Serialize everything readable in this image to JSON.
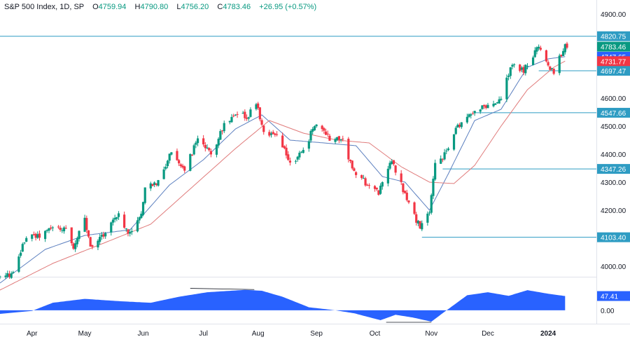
{
  "header": {
    "symbol": "S&P 500 Index, 1D, SP",
    "open_label": "O",
    "open": "4759.94",
    "high_label": "H",
    "high": "4790.80",
    "low_label": "L",
    "low": "4756.20",
    "close_label": "C",
    "close": "4783.46",
    "change": "+26.95 (+0.57%)"
  },
  "colors": {
    "up": "#089981",
    "down": "#f23645",
    "level_line": "#2e9cc3",
    "ma_fast": "#5b7fbf",
    "ma_slow": "#e07b7b",
    "oscillator": "#2962ff",
    "axis_text": "#131722",
    "background": "#ffffff"
  },
  "chart_data": [
    {
      "type": "candlestick",
      "title": "S&P 500 Index, 1D, SP",
      "ylim": [
        3970,
        4935
      ],
      "y_ticks": [
        "4900.00",
        "4600.00",
        "4500.00",
        "4400.00",
        "4300.00",
        "4200.00",
        "4000.00"
      ],
      "y_tick_values": [
        4900,
        4600,
        4500,
        4400,
        4300,
        4200,
        4000
      ],
      "x_ticks": [
        "Apr",
        "May",
        "Jun",
        "Jul",
        "Aug",
        "Sep",
        "Oct",
        "Nov",
        "Dec",
        "2024"
      ],
      "x_tick_dates": [
        "2023-04-03",
        "2023-05-01",
        "2023-06-01",
        "2023-07-03",
        "2023-08-01",
        "2023-09-01",
        "2023-10-02",
        "2023-11-01",
        "2023-12-01",
        "2024-01-02"
      ],
      "x_range": [
        "2023-03-17",
        "2024-01-12"
      ],
      "levels": [
        {
          "value": 4820.75,
          "label": "4820.75",
          "from": "2023-03-17"
        },
        {
          "value": 4697.47,
          "label": "4697.47",
          "from": "2023-12-28"
        },
        {
          "value": 4547.66,
          "label": "4547.66",
          "from": "2023-11-24"
        },
        {
          "value": 4347.26,
          "label": "4347.26",
          "from": "2023-11-07"
        },
        {
          "value": 4103.4,
          "label": "4103.40",
          "from": "2023-10-27"
        }
      ],
      "price_labels": [
        {
          "value": 4783.46,
          "label": "4783.46",
          "color": "#089981"
        },
        {
          "value": 4747.65,
          "label": "4747.65",
          "color": "#2962ff"
        },
        {
          "value": 4731.77,
          "label": "4731.77",
          "color": "#f23645"
        }
      ],
      "series": [
        {
          "name": "close",
          "anchors": [
            [
              "2023-03-17",
              3960
            ],
            [
              "2023-03-24",
              3972
            ],
            [
              "2023-03-31",
              4109
            ],
            [
              "2023-04-06",
              4105
            ],
            [
              "2023-04-14",
              4137
            ],
            [
              "2023-04-21",
              4133
            ],
            [
              "2023-04-25",
              4071
            ],
            [
              "2023-05-01",
              4167
            ],
            [
              "2023-05-04",
              4061
            ],
            [
              "2023-05-12",
              4124
            ],
            [
              "2023-05-19",
              4191
            ],
            [
              "2023-05-24",
              4115
            ],
            [
              "2023-05-31",
              4180
            ],
            [
              "2023-06-02",
              4282
            ],
            [
              "2023-06-09",
              4299
            ],
            [
              "2023-06-16",
              4410
            ],
            [
              "2023-06-23",
              4348
            ],
            [
              "2023-06-30",
              4450
            ],
            [
              "2023-07-07",
              4399
            ],
            [
              "2023-07-14",
              4505
            ],
            [
              "2023-07-21",
              4536
            ],
            [
              "2023-07-27",
              4537
            ],
            [
              "2023-07-31",
              4589
            ],
            [
              "2023-08-04",
              4478
            ],
            [
              "2023-08-11",
              4464
            ],
            [
              "2023-08-18",
              4370
            ],
            [
              "2023-08-25",
              4406
            ],
            [
              "2023-08-31",
              4508
            ],
            [
              "2023-09-08",
              4457
            ],
            [
              "2023-09-15",
              4450
            ],
            [
              "2023-09-21",
              4330
            ],
            [
              "2023-09-29",
              4288
            ],
            [
              "2023-10-04",
              4263
            ],
            [
              "2023-10-06",
              4308
            ],
            [
              "2023-10-11",
              4376
            ],
            [
              "2023-10-20",
              4224
            ],
            [
              "2023-10-26",
              4137
            ],
            [
              "2023-10-31",
              4194
            ],
            [
              "2023-11-03",
              4358
            ],
            [
              "2023-11-10",
              4415
            ],
            [
              "2023-11-14",
              4495
            ],
            [
              "2023-11-24",
              4559
            ],
            [
              "2023-11-30",
              4568
            ],
            [
              "2023-12-07",
              4585
            ],
            [
              "2023-12-14",
              4720
            ],
            [
              "2023-12-20",
              4698
            ],
            [
              "2023-12-28",
              4783
            ],
            [
              "2024-01-03",
              4705
            ],
            [
              "2024-01-05",
              4697
            ],
            [
              "2024-01-09",
              4756
            ],
            [
              "2024-01-11",
              4783
            ]
          ]
        },
        {
          "name": "",
          "type": "line",
          "role": "ma-fast",
          "anchors": [
            [
              "2023-03-17",
              3940
            ],
            [
              "2023-04-10",
              4060
            ],
            [
              "2023-05-01",
              4110
            ],
            [
              "2023-05-25",
              4130
            ],
            [
              "2023-06-15",
              4290
            ],
            [
              "2023-07-03",
              4380
            ],
            [
              "2023-07-20",
              4490
            ],
            [
              "2023-08-03",
              4540
            ],
            [
              "2023-08-18",
              4450
            ],
            [
              "2023-09-05",
              4440
            ],
            [
              "2023-09-22",
              4430
            ],
            [
              "2023-10-06",
              4320
            ],
            [
              "2023-10-18",
              4300
            ],
            [
              "2023-10-31",
              4200
            ],
            [
              "2023-11-10",
              4330
            ],
            [
              "2023-11-24",
              4520
            ],
            [
              "2023-12-08",
              4560
            ],
            [
              "2023-12-22",
              4710
            ],
            [
              "2024-01-02",
              4740
            ],
            [
              "2024-01-11",
              4748
            ]
          ]
        },
        {
          "name": "",
          "type": "line",
          "role": "ma-slow",
          "anchors": [
            [
              "2023-03-17",
              3915
            ],
            [
              "2023-04-14",
              4010
            ],
            [
              "2023-05-12",
              4085
            ],
            [
              "2023-06-05",
              4150
            ],
            [
              "2023-06-30",
              4300
            ],
            [
              "2023-07-20",
              4420
            ],
            [
              "2023-08-07",
              4520
            ],
            [
              "2023-08-25",
              4475
            ],
            [
              "2023-09-12",
              4450
            ],
            [
              "2023-09-29",
              4440
            ],
            [
              "2023-10-16",
              4355
            ],
            [
              "2023-10-31",
              4300
            ],
            [
              "2023-11-13",
              4295
            ],
            [
              "2023-11-24",
              4360
            ],
            [
              "2023-12-08",
              4500
            ],
            [
              "2023-12-22",
              4630
            ],
            [
              "2024-01-05",
              4710
            ],
            [
              "2024-01-11",
              4732
            ]
          ]
        }
      ]
    },
    {
      "type": "area",
      "role": "oscillator",
      "ylim": [
        -40,
        100
      ],
      "y_ticks": [
        "0.00"
      ],
      "y_tick_values": [
        0
      ],
      "value_label": "47.41",
      "last_value": 47.41,
      "series": [
        {
          "name": "",
          "anchors": [
            [
              "2023-03-17",
              -12
            ],
            [
              "2023-04-03",
              -2
            ],
            [
              "2023-04-14",
              25
            ],
            [
              "2023-05-01",
              38
            ],
            [
              "2023-05-20",
              30
            ],
            [
              "2023-06-05",
              25
            ],
            [
              "2023-06-20",
              45
            ],
            [
              "2023-07-05",
              60
            ],
            [
              "2023-07-25",
              68
            ],
            [
              "2023-08-03",
              65
            ],
            [
              "2023-08-14",
              45
            ],
            [
              "2023-08-28",
              10
            ],
            [
              "2023-09-11",
              0
            ],
            [
              "2023-09-21",
              -10
            ],
            [
              "2023-10-05",
              -33
            ],
            [
              "2023-10-13",
              -15
            ],
            [
              "2023-10-22",
              -24
            ],
            [
              "2023-11-01",
              -38
            ],
            [
              "2023-11-08",
              -5
            ],
            [
              "2023-11-20",
              50
            ],
            [
              "2023-12-01",
              60
            ],
            [
              "2023-12-12",
              48
            ],
            [
              "2023-12-22",
              67
            ],
            [
              "2024-01-02",
              55
            ],
            [
              "2024-01-11",
              47.41
            ]
          ]
        }
      ]
    }
  ]
}
